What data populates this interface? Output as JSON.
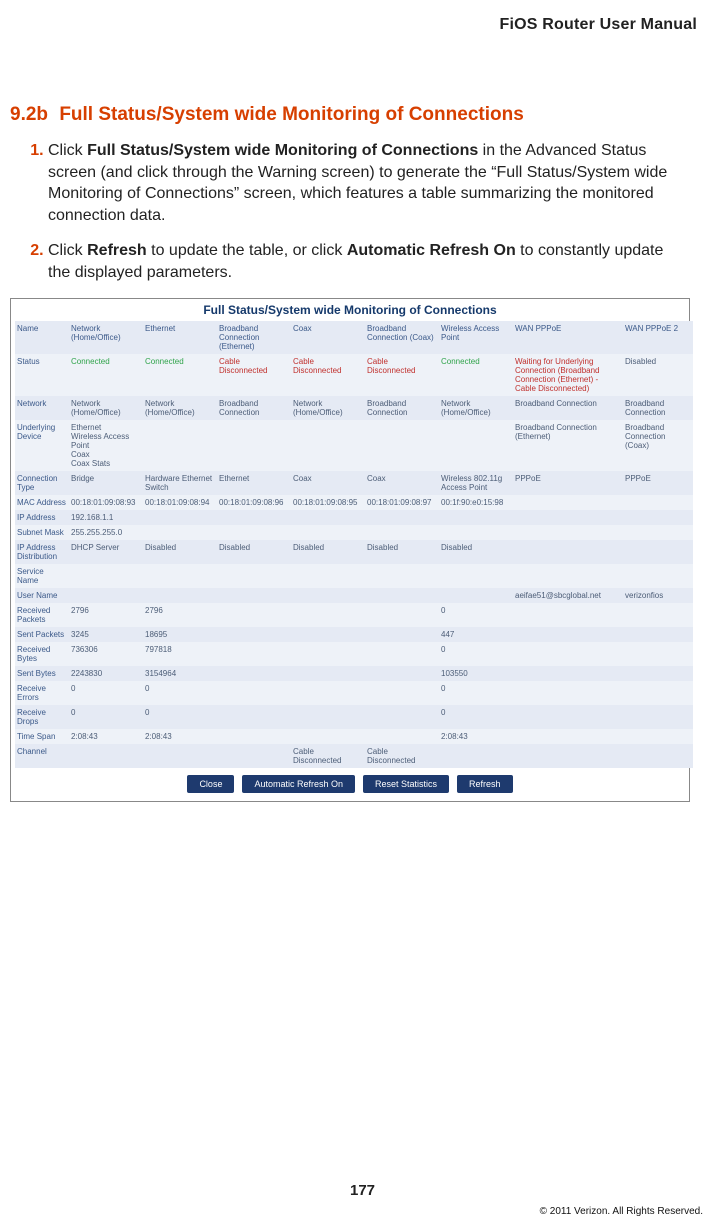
{
  "header": {
    "manual_title": "FiOS Router User Manual"
  },
  "section": {
    "number": "9.2b",
    "title": "Full Status/System wide Monitoring of Connections"
  },
  "steps": {
    "s1_prefix": "Click ",
    "s1_bold": "Full Status/System wide Monitoring of Connections",
    "s1_rest": " in the Advanced Status screen (and click through the Warning screen) to generate the “Full Status/System wide Monitoring of Connections” screen, which features a table summarizing the monitored connection data.",
    "s2_prefix": "Click ",
    "s2_b1": "Refresh",
    "s2_mid": " to update the table, or click ",
    "s2_b2": "Automatic Refresh On",
    "s2_rest": " to constantly update the displayed parameters."
  },
  "screenshot": {
    "title": "Full Status/System wide Monitoring of Connections",
    "columns": [
      "Name",
      "Network (Home/Office)",
      "Ethernet",
      "Broadband Connection (Ethernet)",
      "Coax",
      "Broadband Connection (Coax)",
      "Wireless Access Point",
      "WAN PPPoE",
      "WAN PPPoE 2"
    ],
    "rows": [
      {
        "label": "Status",
        "cells": [
          "Connected",
          "Connected",
          "Cable Disconnected",
          "Cable Disconnected",
          "Cable Disconnected",
          "Connected",
          "Waiting for Underlying Connection (Broadband Connection (Ethernet) - Cable Disconnected)",
          "Disabled"
        ],
        "styles": [
          "g",
          "g",
          "r",
          "r",
          "r",
          "g",
          "r",
          ""
        ]
      },
      {
        "label": "Network",
        "cells": [
          "Network (Home/Office)",
          "Network (Home/Office)",
          "Broadband Connection",
          "Network (Home/Office)",
          "Broadband Connection",
          "Network (Home/Office)",
          "Broadband Connection",
          "Broadband Connection"
        ]
      },
      {
        "label": "Underlying Device",
        "cells": [
          "Ethernet\nWireless Access Point\nCoax\nCoax Stats",
          "",
          "",
          "",
          "",
          "",
          "Broadband Connection (Ethernet)",
          "Broadband Connection (Coax)"
        ]
      },
      {
        "label": "Connection Type",
        "cells": [
          "Bridge",
          "Hardware Ethernet Switch",
          "Ethernet",
          "Coax",
          "Coax",
          "Wireless 802.11g Access Point",
          "PPPoE",
          "PPPoE"
        ]
      },
      {
        "label": "MAC Address",
        "cells": [
          "00:18:01:09:08:93",
          "00:18:01:09:08:94",
          "00:18:01:09:08:96",
          "00:18:01:09:08:95",
          "00:18:01:09:08:97",
          "00:1f:90:e0:15:98",
          "",
          ""
        ]
      },
      {
        "label": "IP Address",
        "cells": [
          "192.168.1.1",
          "",
          "",
          "",
          "",
          "",
          "",
          ""
        ]
      },
      {
        "label": "Subnet Mask",
        "cells": [
          "255.255.255.0",
          "",
          "",
          "",
          "",
          "",
          "",
          ""
        ]
      },
      {
        "label": "IP Address Distribution",
        "cells": [
          "DHCP Server",
          "Disabled",
          "Disabled",
          "Disabled",
          "Disabled",
          "Disabled",
          "",
          ""
        ]
      },
      {
        "label": "Service Name",
        "cells": [
          "",
          "",
          "",
          "",
          "",
          "",
          "",
          ""
        ]
      },
      {
        "label": "User Name",
        "cells": [
          "",
          "",
          "",
          "",
          "",
          "",
          "aeifae51@sbcglobal.net",
          "verizonfios"
        ]
      },
      {
        "label": "Received Packets",
        "cells": [
          "2796",
          "2796",
          "",
          "",
          "",
          "0",
          "",
          ""
        ]
      },
      {
        "label": "Sent Packets",
        "cells": [
          "3245",
          "18695",
          "",
          "",
          "",
          "447",
          "",
          ""
        ]
      },
      {
        "label": "Received Bytes",
        "cells": [
          "736306",
          "797818",
          "",
          "",
          "",
          "0",
          "",
          ""
        ]
      },
      {
        "label": "Sent Bytes",
        "cells": [
          "2243830",
          "3154964",
          "",
          "",
          "",
          "103550",
          "",
          ""
        ]
      },
      {
        "label": "Receive Errors",
        "cells": [
          "0",
          "0",
          "",
          "",
          "",
          "0",
          "",
          ""
        ]
      },
      {
        "label": "Receive Drops",
        "cells": [
          "0",
          "0",
          "",
          "",
          "",
          "0",
          "",
          ""
        ]
      },
      {
        "label": "Time Span",
        "cells": [
          "2:08:43",
          "2:08:43",
          "",
          "",
          "",
          "2:08:43",
          "",
          ""
        ]
      },
      {
        "label": "Channel",
        "cells": [
          "",
          "",
          "",
          "Cable Disconnected",
          "Cable Disconnected",
          "",
          "",
          ""
        ]
      }
    ],
    "buttons": [
      "Close",
      "Automatic Refresh On",
      "Reset Statistics",
      "Refresh"
    ]
  },
  "footer": {
    "page_number": "177",
    "copyright": "© 2011 Verizon. All Rights Reserved."
  }
}
